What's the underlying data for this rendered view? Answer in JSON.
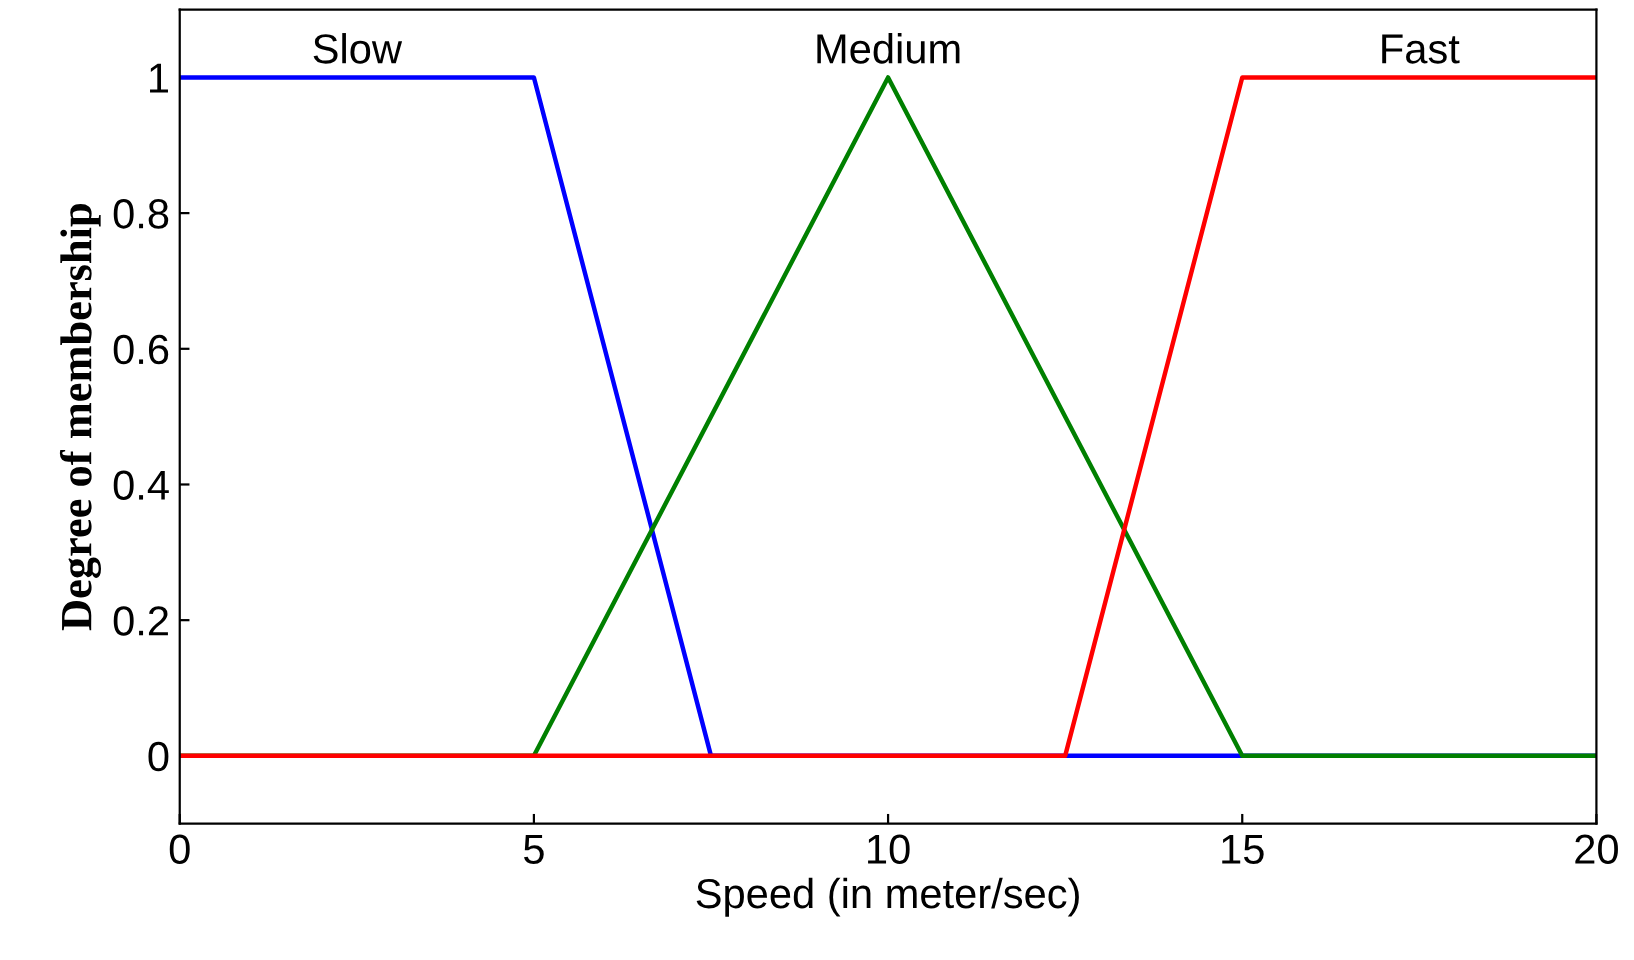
{
  "chart_data": {
    "type": "line",
    "xlabel": "Speed (in meter/sec)",
    "ylabel": "Degree of membership",
    "xlim": [
      0,
      20
    ],
    "xticks": [
      0,
      5,
      10,
      15,
      20
    ],
    "ylim": [
      -0.1,
      1.1
    ],
    "yticks": [
      0,
      0.2,
      0.4,
      0.6,
      0.8,
      1
    ],
    "grid": false,
    "legend": false,
    "marker": "none",
    "line_style": "solid",
    "series": [
      {
        "name": "Slow",
        "color": "#0000ff",
        "x": [
          0,
          5,
          7.5,
          20
        ],
        "values": [
          1,
          1,
          0,
          0
        ]
      },
      {
        "name": "Medium",
        "color": "#008000",
        "x": [
          0,
          5,
          10,
          15,
          20
        ],
        "values": [
          0,
          0,
          1,
          0,
          0
        ]
      },
      {
        "name": "Fast",
        "color": "#ff0000",
        "x": [
          0,
          12.5,
          15,
          20
        ],
        "values": [
          0,
          0,
          1,
          1
        ]
      }
    ]
  }
}
